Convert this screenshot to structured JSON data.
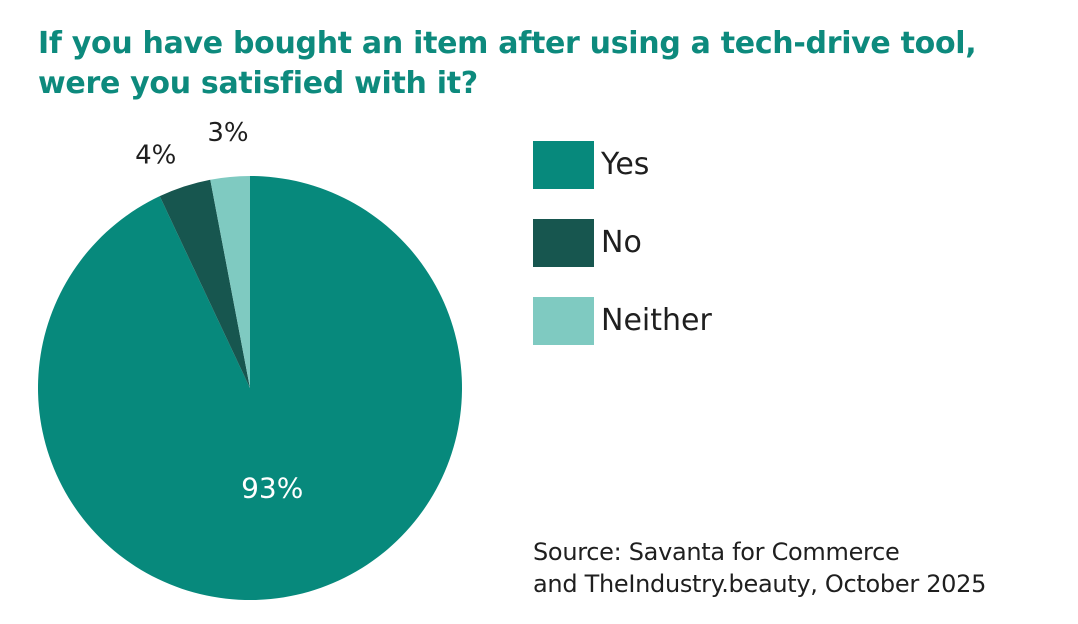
{
  "chart_data": {
    "type": "pie",
    "title_lines": [
      "If you have bought an item after using a tech-drive tool,",
      "were you satisfied with it?"
    ],
    "slices": [
      {
        "name": "Yes",
        "value": 93,
        "label": "93%",
        "color": "#07897c"
      },
      {
        "name": "No",
        "value": 4,
        "label": "4%",
        "color": "#17564f"
      },
      {
        "name": "Neither",
        "value": 3,
        "label": "3%",
        "color": "#7fcac1"
      }
    ],
    "legend": {
      "placement": "right",
      "items": [
        {
          "label": "Yes",
          "color": "#07897c"
        },
        {
          "label": "No",
          "color": "#17564f"
        },
        {
          "label": "Neither",
          "color": "#7fcac1"
        }
      ]
    },
    "source_lines": [
      "Source: Savanta for Commerce",
      "and TheIndustry.beauty, October 2025"
    ]
  }
}
